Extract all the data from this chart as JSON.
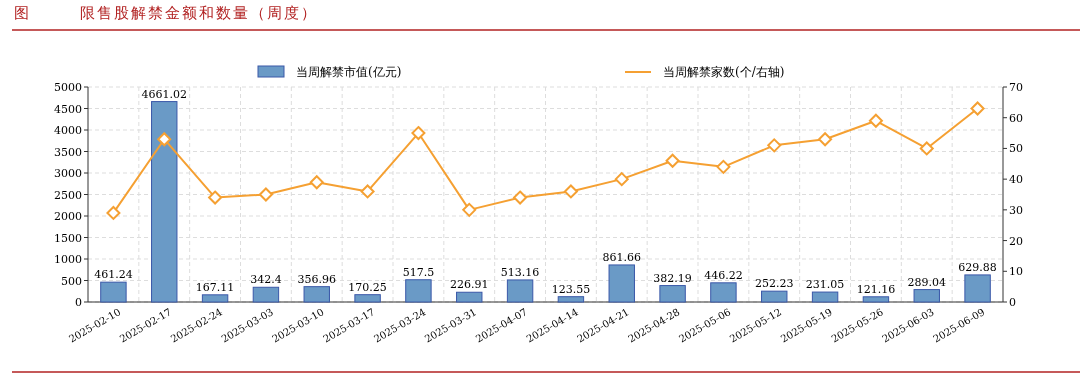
{
  "chart_data": {
    "type": "bar",
    "title": "限售股解禁金额和数量（周度）",
    "annotations": [
      "图"
    ],
    "categories": [
      "2025-02-10",
      "2025-02-17",
      "2025-02-24",
      "2025-03-03",
      "2025-03-10",
      "2025-03-17",
      "2025-03-24",
      "2025-03-31",
      "2025-04-07",
      "2025-04-14",
      "2025-04-21",
      "2025-04-28",
      "2025-05-06",
      "2025-05-12",
      "2025-05-19",
      "2025-05-26",
      "2025-06-03",
      "2025-06-09"
    ],
    "series": [
      {
        "name": "当周解禁市值(亿元)",
        "color": "#6a9ac6",
        "values": [
          461.24,
          4661.02,
          167.11,
          342.4,
          356.96,
          170.25,
          517.5,
          226.91,
          513.16,
          123.55,
          861.66,
          382.19,
          446.22,
          252.23,
          231.05,
          121.16,
          289.04,
          629.88
        ],
        "value_labels": [
          "461.24",
          "4661.02",
          "167.11",
          "342.4",
          "356.96",
          "170.25",
          "517.5",
          "226.91",
          "513.16",
          "123.55",
          "861.66",
          "382.19",
          "446.22",
          "252.23",
          "231.05",
          "121.16",
          "289.04",
          "629.88"
        ]
      },
      {
        "name": "当周解禁家数(个/右轴)",
        "type": "line",
        "axis": "y2",
        "color": "#f5a032",
        "marker": "diamond",
        "values": [
          29,
          53,
          34,
          35,
          39,
          36,
          55,
          30,
          34,
          36,
          40,
          46,
          44,
          51,
          53,
          59,
          50,
          63
        ]
      }
    ],
    "ylim": [
      0,
      5000
    ],
    "yticks": [
      0,
      500,
      1000,
      1500,
      2000,
      2500,
      3000,
      3500,
      4000,
      4500,
      5000
    ],
    "y2lim": [
      0,
      70
    ],
    "y2ticks": [
      0,
      10,
      20,
      30,
      40,
      50,
      60,
      70
    ],
    "grid": true,
    "legend": "top"
  }
}
